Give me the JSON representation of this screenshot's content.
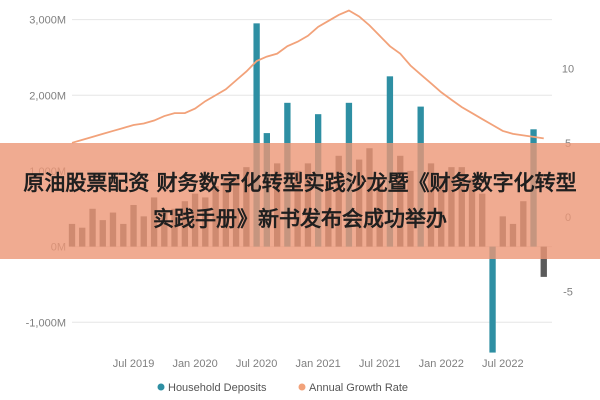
{
  "banner": {
    "headline": "原油股票配资 财务数字化转型实践沙龙暨《财务数字化转型实践手册》新书发布会成功举办"
  },
  "colors": {
    "bars": "#2e8fa3",
    "bars_dark": "#4a4a4a",
    "line": "#f2a27a",
    "banner": "#ec9676"
  },
  "chart_data": {
    "type": "bar+line",
    "legend_position": "bottom",
    "y_left": {
      "ticks": [
        "3,000M",
        "2,000M",
        "1,000M",
        "0M",
        "-1,000M"
      ],
      "values": [
        3000,
        2000,
        1000,
        0,
        -1000
      ],
      "lim": [
        -1300,
        3100
      ]
    },
    "y_right": {
      "ticks": [
        "10",
        "5",
        "0",
        "-5"
      ],
      "values": [
        10,
        5,
        0,
        -5
      ],
      "lim": [
        -8.6,
        13.8
      ]
    },
    "x_labels": [
      "Jul 2019",
      "Jan 2020",
      "Jul 2020",
      "Jan 2021",
      "Jul 2021",
      "Jan 2022",
      "Jul 2022"
    ],
    "x_range": [
      2019.0,
      2022.9
    ],
    "series": [
      {
        "name": "Household Deposits",
        "kind": "bar",
        "x": [
          2019.0,
          2019.083,
          2019.167,
          2019.25,
          2019.333,
          2019.417,
          2019.5,
          2019.583,
          2019.667,
          2019.75,
          2019.833,
          2019.917,
          2020.0,
          2020.083,
          2020.167,
          2020.25,
          2020.333,
          2020.417,
          2020.5,
          2020.583,
          2020.667,
          2020.75,
          2020.833,
          2020.917,
          2021.0,
          2021.083,
          2021.167,
          2021.25,
          2021.333,
          2021.417,
          2021.5,
          2021.583,
          2021.667,
          2021.75,
          2021.833,
          2021.917,
          2022.0,
          2022.083,
          2022.167,
          2022.25,
          2022.333,
          2022.417,
          2022.5,
          2022.583,
          2022.667,
          2022.75,
          2022.833
        ],
        "values": [
          300,
          250,
          500,
          350,
          450,
          300,
          550,
          400,
          650,
          450,
          500,
          600,
          700,
          650,
          800,
          900,
          950,
          1050,
          2950,
          1500,
          1100,
          1900,
          1000,
          1100,
          1750,
          900,
          1200,
          1900,
          1150,
          1300,
          850,
          2250,
          1200,
          1000,
          1850,
          1100,
          900,
          1050,
          1050,
          900,
          700,
          -1400,
          400,
          300,
          600,
          1550,
          -400
        ]
      },
      {
        "name": "Annual Growth Rate",
        "kind": "line",
        "x": [
          2019.0,
          2019.083,
          2019.167,
          2019.25,
          2019.333,
          2019.417,
          2019.5,
          2019.583,
          2019.667,
          2019.75,
          2019.833,
          2019.917,
          2020.0,
          2020.083,
          2020.167,
          2020.25,
          2020.333,
          2020.417,
          2020.5,
          2020.583,
          2020.667,
          2020.75,
          2020.833,
          2020.917,
          2021.0,
          2021.083,
          2021.167,
          2021.25,
          2021.333,
          2021.417,
          2021.5,
          2021.583,
          2021.667,
          2021.75,
          2021.833,
          2021.917,
          2022.0,
          2022.083,
          2022.167,
          2022.25,
          2022.333,
          2022.417,
          2022.5,
          2022.583,
          2022.667,
          2022.75,
          2022.833
        ],
        "values": [
          5.0,
          5.2,
          5.4,
          5.6,
          5.8,
          6.0,
          6.2,
          6.3,
          6.5,
          6.8,
          7.0,
          7.0,
          7.3,
          7.8,
          8.2,
          8.6,
          9.2,
          9.8,
          10.5,
          10.8,
          11.0,
          11.5,
          11.8,
          12.2,
          12.8,
          13.2,
          13.6,
          13.9,
          13.5,
          12.9,
          12.2,
          11.5,
          11.0,
          10.2,
          9.6,
          9.0,
          8.4,
          7.9,
          7.4,
          7.0,
          6.6,
          6.2,
          5.8,
          5.6,
          5.5,
          5.4,
          5.3
        ]
      }
    ]
  }
}
